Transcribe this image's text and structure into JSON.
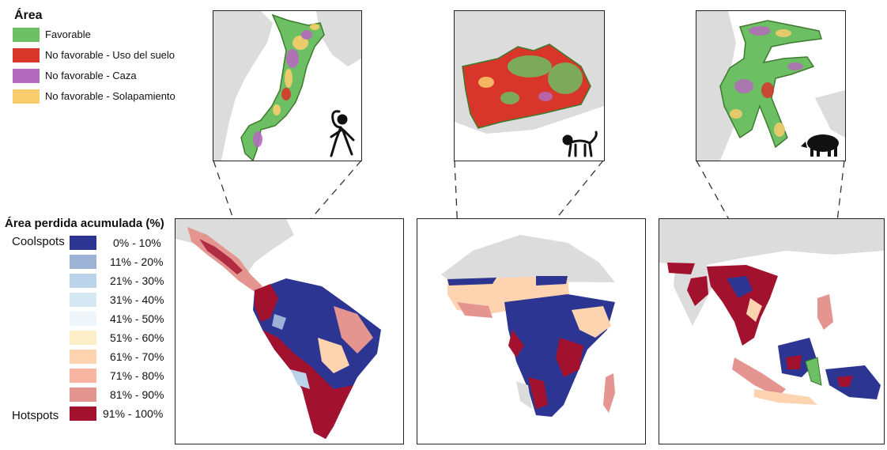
{
  "area_legend": {
    "title": "Área",
    "items": [
      {
        "label": "Favorable",
        "color": "#6cbf63"
      },
      {
        "label": "No favorable - Uso del suelo",
        "color": "#d9362b"
      },
      {
        "label": "No favorable - Caza",
        "color": "#b56bbd"
      },
      {
        "label": "No favorable - Solapamiento",
        "color": "#f9cd6c"
      }
    ]
  },
  "loss_legend": {
    "title": "Área perdida acumulada (%)",
    "coolspots_label": "Coolspots",
    "hotspots_label": "Hotspots",
    "bins": [
      {
        "label": "0% - 10%",
        "color": "#2c3591"
      },
      {
        "label": "11% - 20%",
        "color": "#9db3d6"
      },
      {
        "label": "21% - 30%",
        "color": "#bcd4ea"
      },
      {
        "label": "31% - 40%",
        "color": "#d6e8f4"
      },
      {
        "label": "41% - 50%",
        "color": "#eef6fb"
      },
      {
        "label": "51% - 60%",
        "color": "#fdf0c9"
      },
      {
        "label": "61% - 70%",
        "color": "#fdd3b0"
      },
      {
        "label": "71% - 80%",
        "color": "#f8b5a2"
      },
      {
        "label": "81% - 90%",
        "color": "#e59590"
      },
      {
        "label": "91% - 100%",
        "color": "#a2122f"
      }
    ]
  },
  "colors": {
    "land_gray": "#dcdcdc",
    "outline_green": "#3d7a2e",
    "silhouette": "#111111"
  },
  "regions": [
    {
      "name": "americas",
      "inset_icon": "spider-monkey-icon"
    },
    {
      "name": "africa",
      "inset_icon": "monkey-icon"
    },
    {
      "name": "southeast-asia",
      "inset_icon": "wild-pig-icon"
    }
  ]
}
